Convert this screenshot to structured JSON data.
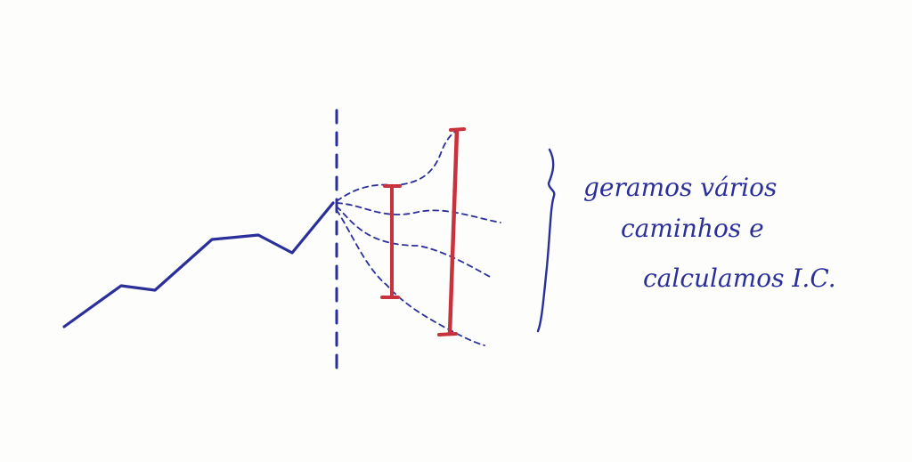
{
  "colors": {
    "ink_blue": "#2a2f9a",
    "ink_red": "#c8323c",
    "paper": "#fdfdfb"
  },
  "annotation": {
    "line1": "geramos vários",
    "line2": "caminhos e",
    "line3": "calculamos I.C."
  }
}
